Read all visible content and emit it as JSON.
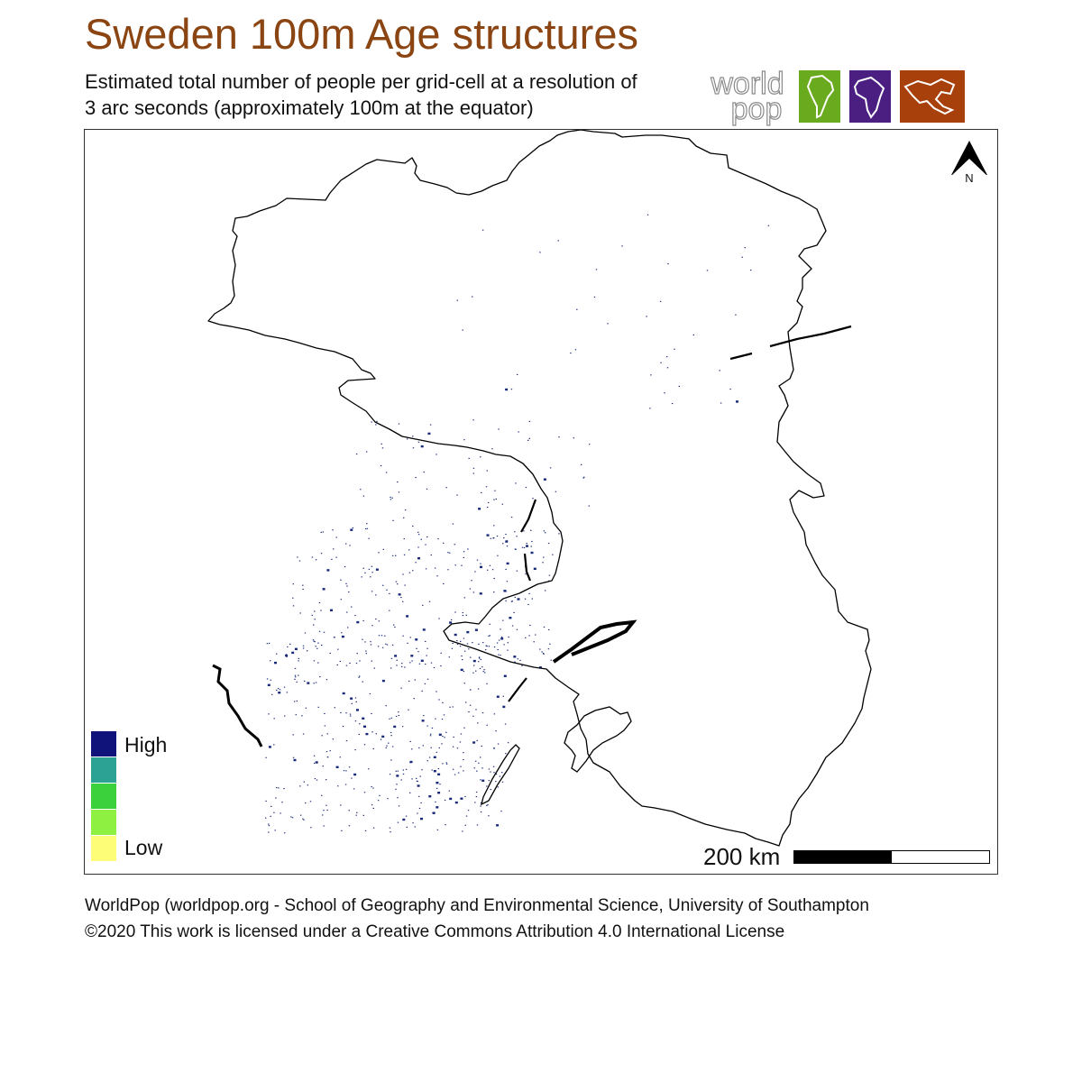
{
  "title": "Sweden 100m Age structures",
  "subtitle": {
    "line1": "Estimated total number of people per grid-cell at a resolution of",
    "line2": "3 arc seconds (approximately 100m at the equator)"
  },
  "logo": {
    "word1": "world",
    "word2": "pop",
    "tiles": [
      {
        "region": "south-america",
        "color": "#6aaa1e"
      },
      {
        "region": "africa",
        "color": "#4b1f82"
      },
      {
        "region": "asia",
        "color": "#a8400c"
      }
    ]
  },
  "north_arrow": {
    "label": "N"
  },
  "legend": {
    "high_label": "High",
    "low_label": "Low",
    "colors": [
      "#10137a",
      "#2ba293",
      "#3ad13d",
      "#8ef040",
      "#fdfd78"
    ]
  },
  "scale_bar": {
    "label": "200 km"
  },
  "map": {
    "outline_color": "#000000",
    "population_color": "#1a2a7a"
  },
  "footer": {
    "line1": "WorldPop (worldpop.org - School of Geography and Environmental Science, University of Southampton",
    "line2": "©2020 This work is licensed under a Creative Commons Attribution 4.0 International License"
  }
}
